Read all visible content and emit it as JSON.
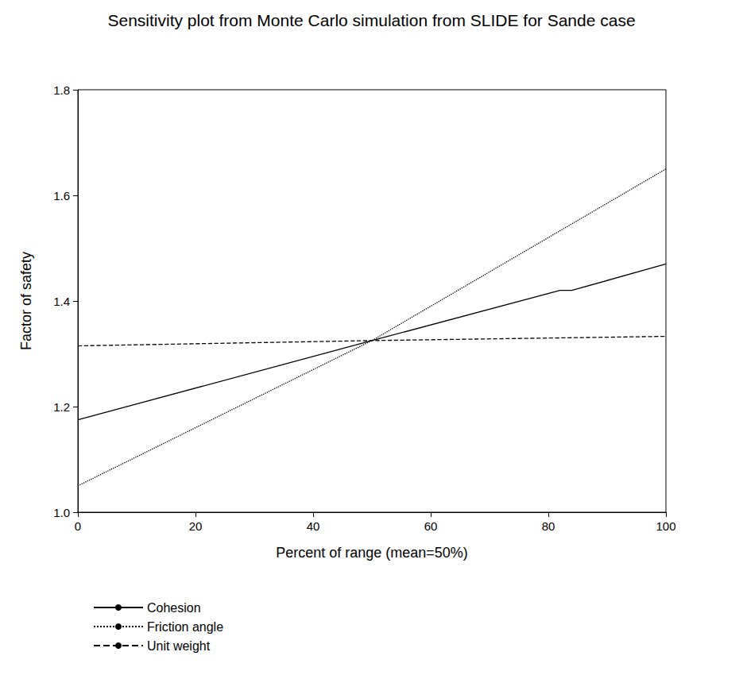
{
  "chart_data": {
    "type": "line",
    "title": "Sensitivity plot from Monte Carlo simulation from SLIDE for Sande case",
    "x_label": "Percent of range (mean=50%)",
    "y_label": "Factor of safety",
    "xlim": [
      0,
      100
    ],
    "xticks": [
      0,
      20,
      40,
      60,
      80,
      100
    ],
    "ylim": [
      1.0,
      1.8
    ],
    "yticks": [
      {
        "value": 1.0,
        "label": "1.0"
      },
      1.2,
      1.4,
      1.6,
      1.8
    ],
    "grid": false,
    "legend": "bottom-left",
    "series": [
      {
        "name": "Cohesion",
        "color": "#000000",
        "line_style": "solid",
        "x": [
          0,
          50,
          82,
          84,
          100
        ],
        "values": [
          1.175,
          1.325,
          1.42,
          1.42,
          1.47
        ]
      },
      {
        "name": "Friction angle",
        "color": "#000000",
        "line_style": "dotted",
        "x": [
          0,
          50,
          100
        ],
        "values": [
          1.05,
          1.325,
          1.65
        ]
      },
      {
        "name": "Unit weight",
        "color": "#000000",
        "line_style": "dashed",
        "x": [
          0,
          50,
          100
        ],
        "values": [
          1.315,
          1.325,
          1.333
        ]
      }
    ]
  }
}
